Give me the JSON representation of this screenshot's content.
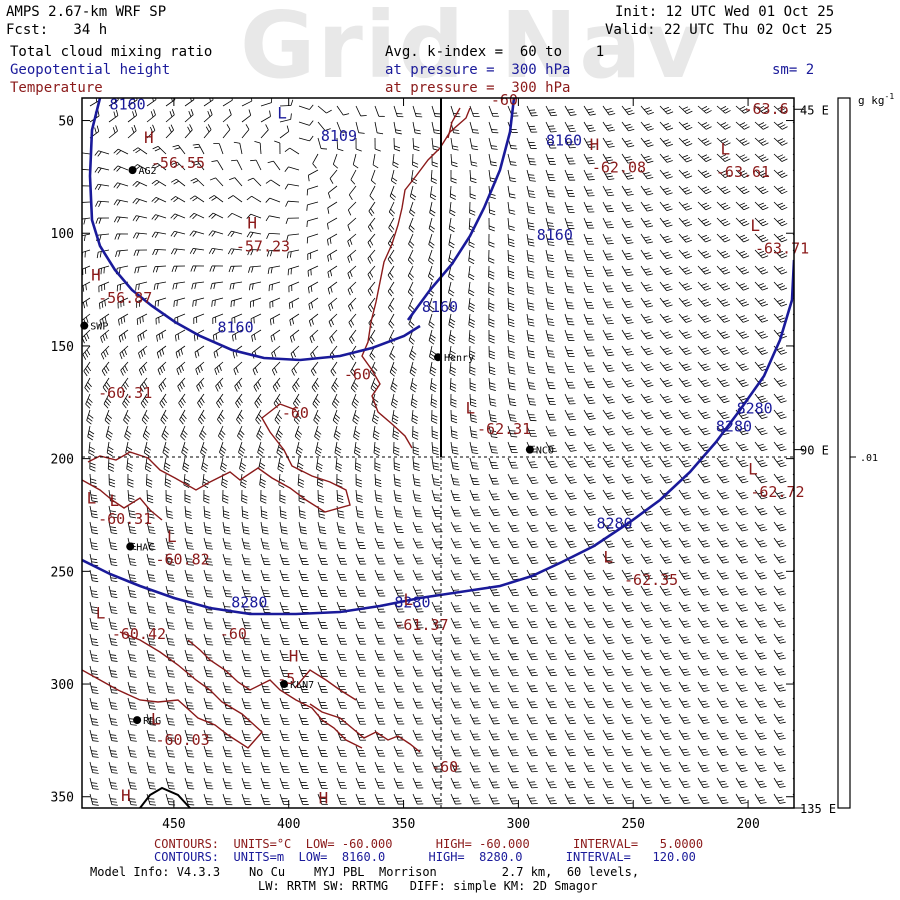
{
  "header": {
    "line1_left": "AMPS 2.67-km WRF SP",
    "line2_left": "Fcst:   34 h",
    "line1_right": "Init: 12 UTC Wed 01 Oct 25",
    "line2_right": "Valid: 22 UTC Thu 02 Oct 25",
    "field1": "Total cloud mixing ratio",
    "field2": "Geopotential height",
    "field3": "Temperature",
    "avg": "Avg. k-index =  60 to    1",
    "pres1": "at pressure =  300 hPa",
    "pres2": "at pressure =  300 hPa",
    "sm": "sm= 2",
    "watermark": "Grid Nav"
  },
  "colorbar": {
    "unit": "g kg",
    "unit_sup": "-1",
    "tick": ".01"
  },
  "footer": {
    "red_contours": "CONTOURS:  UNITS=°C  LOW= -60.000      HIGH= -60.000      INTERVAL=   5.0000",
    "blue_contours": "CONTOURS:  UNITS=m  LOW=  8160.0      HIGH=  8280.0      INTERVAL=   120.00",
    "model1": "Model Info: V4.3.3    No Cu    MYJ PBL  Morrison         2.7 km,  60 levels,",
    "model2": "LW: RRTM SW: RRTMG   DIFF: simple KM: 2D Smagor"
  },
  "colors": {
    "geopotential": "#1a1a9a",
    "temperature": "#8b1a1a",
    "barbs": "#000000"
  },
  "chart_data": {
    "type": "map",
    "xlim": [
      490,
      180
    ],
    "ylim": [
      355,
      40
    ],
    "xticks": [
      450,
      400,
      350,
      300,
      250,
      200
    ],
    "yticks": [
      50,
      100,
      150,
      200,
      250,
      300,
      350
    ],
    "right_axis_labels": [
      {
        "label": "45 E",
        "y": 45
      },
      {
        "label": "90 E",
        "y": 196
      },
      {
        "label": "135 E",
        "y": 355
      }
    ],
    "crosshair": {
      "x": 335,
      "y": 196
    },
    "stations": [
      {
        "name": "AG2",
        "x": 468,
        "y": 72
      },
      {
        "name": "SWP",
        "x": 489,
        "y": 141
      },
      {
        "name": "Henry",
        "x": 335,
        "y": 155
      },
      {
        "name": "NCO",
        "x": 295,
        "y": 196
      },
      {
        "name": "HAC",
        "x": 469,
        "y": 239
      },
      {
        "name": "KLN7",
        "x": 402,
        "y": 300
      },
      {
        "name": "RDG",
        "x": 466,
        "y": 316
      }
    ],
    "height_labels": [
      {
        "t": "8160",
        "x": 478,
        "y": 45
      },
      {
        "t": "8109",
        "x": 386,
        "y": 59
      },
      {
        "t": "8160",
        "x": 288,
        "y": 61
      },
      {
        "t": "8160",
        "x": 292,
        "y": 103
      },
      {
        "t": "8160",
        "x": 342,
        "y": 135
      },
      {
        "t": "8160",
        "x": 431,
        "y": 144
      },
      {
        "t": "8280",
        "x": 205,
        "y": 180
      },
      {
        "t": "8280",
        "x": 214,
        "y": 188
      },
      {
        "t": "8280",
        "x": 266,
        "y": 231
      },
      {
        "t": "8280",
        "x": 425,
        "y": 266
      },
      {
        "t": "8280",
        "x": 354,
        "y": 266
      }
    ],
    "temperature_labels": [
      {
        "t": "-60",
        "x": 312,
        "y": 43
      },
      {
        "t": "-63.6",
        "x": 202,
        "y": 47
      },
      {
        "t": "-62.08",
        "x": 268,
        "y": 73
      },
      {
        "t": "-63.61",
        "x": 214,
        "y": 75
      },
      {
        "t": "-56.55",
        "x": 460,
        "y": 71
      },
      {
        "t": "-57.23",
        "x": 423,
        "y": 108
      },
      {
        "t": "-63.71",
        "x": 197,
        "y": 109
      },
      {
        "t": "-56.87",
        "x": 483,
        "y": 131
      },
      {
        "t": "-60",
        "x": 376,
        "y": 165
      },
      {
        "t": "-60",
        "x": 403,
        "y": 182
      },
      {
        "t": "-62.31",
        "x": 318,
        "y": 189
      },
      {
        "t": "-60.31",
        "x": 483,
        "y": 173
      },
      {
        "t": "-62.72",
        "x": 199,
        "y": 217
      },
      {
        "t": "-60.31",
        "x": 483,
        "y": 229
      },
      {
        "t": "-60.82",
        "x": 458,
        "y": 247
      },
      {
        "t": "-62.35",
        "x": 254,
        "y": 256
      },
      {
        "t": "-61.37",
        "x": 354,
        "y": 276
      },
      {
        "t": "-60.42",
        "x": 477,
        "y": 280
      },
      {
        "t": "-60",
        "x": 430,
        "y": 280
      },
      {
        "t": "-5",
        "x": 405,
        "y": 300
      },
      {
        "t": "-60.03",
        "x": 458,
        "y": 327
      },
      {
        "t": "-60",
        "x": 338,
        "y": 339
      }
    ],
    "extrema": [
      {
        "t": "L",
        "c": "blue",
        "x": 405,
        "y": 49
      },
      {
        "t": "H",
        "c": "red",
        "x": 463,
        "y": 60
      },
      {
        "t": "H",
        "c": "red",
        "x": 418,
        "y": 98
      },
      {
        "t": "H",
        "c": "red",
        "x": 486,
        "y": 121
      },
      {
        "t": "H",
        "c": "red",
        "x": 269,
        "y": 63
      },
      {
        "t": "L",
        "c": "red",
        "x": 212,
        "y": 65
      },
      {
        "t": "L",
        "c": "red",
        "x": 199,
        "y": 99
      },
      {
        "t": "L",
        "c": "red",
        "x": 323,
        "y": 180
      },
      {
        "t": "L",
        "c": "red",
        "x": 488,
        "y": 220
      },
      {
        "t": "L",
        "c": "red",
        "x": 478,
        "y": 221
      },
      {
        "t": "L",
        "c": "red",
        "x": 453,
        "y": 237
      },
      {
        "t": "L",
        "c": "red",
        "x": 263,
        "y": 246
      },
      {
        "t": "L",
        "c": "red",
        "x": 200,
        "y": 207
      },
      {
        "t": "L",
        "c": "red",
        "x": 350,
        "y": 265
      },
      {
        "t": "L",
        "c": "red",
        "x": 484,
        "y": 271
      },
      {
        "t": "H",
        "c": "red",
        "x": 400,
        "y": 290
      },
      {
        "t": "L",
        "c": "red",
        "x": 460,
        "y": 318
      },
      {
        "t": "H",
        "c": "red",
        "x": 473,
        "y": 352
      },
      {
        "t": "H",
        "c": "red",
        "x": 387,
        "y": 353
      }
    ]
  }
}
